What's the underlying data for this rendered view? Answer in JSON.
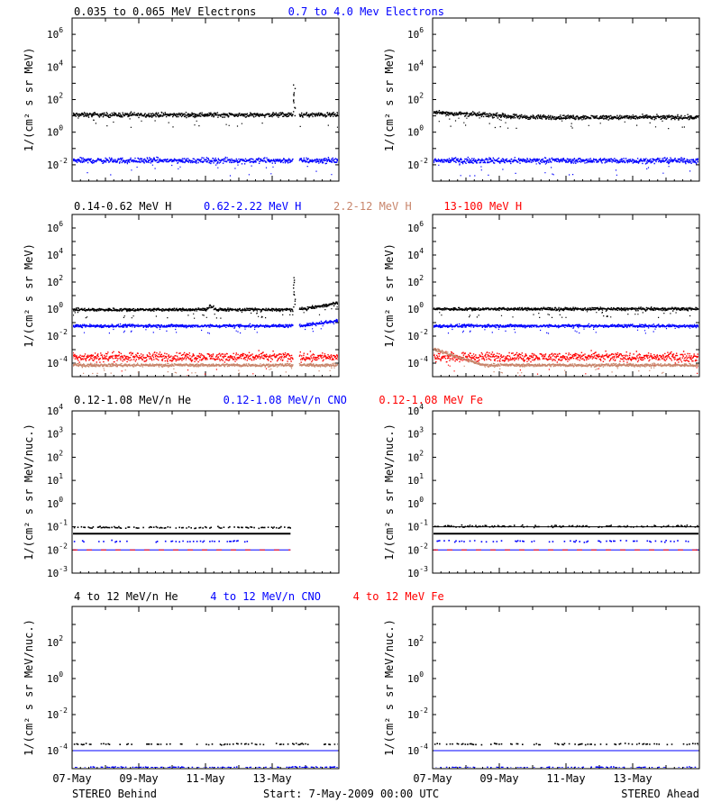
{
  "colors": {
    "black": "#000000",
    "blue": "#0000ff",
    "tan": "#c8856b",
    "red": "#ff0000"
  },
  "rows": [
    {
      "id": "electrons",
      "ylabel": "1/(cm² s sr MeV)",
      "titles": [
        {
          "text": "0.035 to 0.065 MeV Electrons",
          "color": "#000000"
        },
        {
          "text": "0.7 to 4.0 Mev Electrons",
          "color": "#0000ff"
        }
      ],
      "y_log_range": [
        -3,
        7
      ],
      "y_ticks": [
        {
          "base": "10",
          "exp": "-2",
          "value": -2
        },
        {
          "base": "10",
          "exp": "0",
          "value": 0
        },
        {
          "base": "10",
          "exp": "2",
          "value": 2
        },
        {
          "base": "10",
          "exp": "4",
          "value": 4
        },
        {
          "base": "10",
          "exp": "6",
          "value": 6
        }
      ],
      "panels": {
        "behind": {
          "gaps": [
            [
              6.6,
              6.8
            ]
          ],
          "series": [
            {
              "color": "#000000",
              "level": 1.1,
              "noise": 0.1
            },
            {
              "color": "#0000ff",
              "level": -1.7,
              "noise": 0.12
            }
          ],
          "spikes": [
            {
              "x": 6.62,
              "from": 1.1,
              "to": 2.9,
              "color": "#000000"
            }
          ]
        },
        "ahead": {
          "gaps": [],
          "series": [
            {
              "color": "#000000",
              "level": 0.95,
              "noise": 0.1,
              "start": 1.25
            },
            {
              "color": "#0000ff",
              "level": -1.7,
              "noise": 0.12
            }
          ],
          "spikes": []
        }
      }
    },
    {
      "id": "protons",
      "ylabel": "1/(cm² s sr MeV)",
      "titles": [
        {
          "text": "0.14-0.62 MeV H",
          "color": "#000000"
        },
        {
          "text": "0.62-2.22 MeV H",
          "color": "#0000ff"
        },
        {
          "text": "2.2-12 MeV H",
          "color": "#c8856b"
        },
        {
          "text": "13-100 MeV H",
          "color": "#ff0000"
        }
      ],
      "y_log_range": [
        -5,
        7
      ],
      "y_ticks": [
        {
          "base": "10",
          "exp": "-4",
          "value": -4
        },
        {
          "base": "10",
          "exp": "-2",
          "value": -2
        },
        {
          "base": "10",
          "exp": "0",
          "value": 0
        },
        {
          "base": "10",
          "exp": "2",
          "value": 2
        },
        {
          "base": "10",
          "exp": "4",
          "value": 4
        },
        {
          "base": "10",
          "exp": "6",
          "value": 6
        }
      ],
      "panels": {
        "behind": {
          "gaps": [
            [
              6.6,
              6.8
            ]
          ],
          "series": [
            {
              "color": "#000000",
              "level": 0.0,
              "noise": 0.08,
              "end_rise": 0.5
            },
            {
              "color": "#0000ff",
              "level": -1.2,
              "noise": 0.08,
              "end_rise": 0.4
            },
            {
              "color": "#ff0000",
              "level": -3.5,
              "noise": 0.25
            },
            {
              "color": "#c8856b",
              "level": -4.1,
              "noise": 0.08
            }
          ],
          "spikes": [
            {
              "x": 6.62,
              "from": 0.2,
              "to": 2.4,
              "color": "#000000"
            }
          ]
        },
        "ahead": {
          "gaps": [],
          "series": [
            {
              "color": "#000000",
              "level": 0.05,
              "noise": 0.08
            },
            {
              "color": "#0000ff",
              "level": -1.2,
              "noise": 0.08
            },
            {
              "color": "#ff0000",
              "level": -3.5,
              "noise": 0.25
            },
            {
              "color": "#c8856b",
              "level": -4.1,
              "noise": 0.08,
              "start": -2.9,
              "decay_to": 1.5
            }
          ],
          "spikes": []
        }
      }
    },
    {
      "id": "heavy-low",
      "ylabel": "1/(cm² s sr MeV/nuc.)",
      "titles": [
        {
          "text": "0.12-1.08 MeV/n He",
          "color": "#000000"
        },
        {
          "text": "0.12-1.08 MeV/n CNO",
          "color": "#0000ff"
        },
        {
          "text": "0.12-1.08 MeV Fe",
          "color": "#ff0000"
        }
      ],
      "y_log_range": [
        -3,
        4
      ],
      "y_ticks": [
        {
          "base": "10",
          "exp": "-3",
          "value": -3
        },
        {
          "base": "10",
          "exp": "-2",
          "value": -2
        },
        {
          "base": "10",
          "exp": "-1",
          "value": -1
        },
        {
          "base": "10",
          "exp": "0",
          "value": 0
        },
        {
          "base": "10",
          "exp": "1",
          "value": 1
        },
        {
          "base": "10",
          "exp": "2",
          "value": 2
        },
        {
          "base": "10",
          "exp": "3",
          "value": 3
        },
        {
          "base": "10",
          "exp": "4",
          "value": 4
        }
      ],
      "panels": {
        "behind": {
          "data_end": 6.55,
          "hlines": [
            {
              "color": "#000000",
              "level": -1.3,
              "width": 2
            },
            {
              "color": "#0000ff",
              "level": -2.0,
              "width": 1
            },
            {
              "color": "#ff0000",
              "level": -2.0,
              "width": 1,
              "dash": true
            }
          ],
          "dots": [
            {
              "color": "#000000",
              "level": -1.0,
              "density": 0.55
            },
            {
              "color": "#0000ff",
              "level": -1.6,
              "density": 0.25
            }
          ]
        },
        "ahead": {
          "data_end": 8.0,
          "hlines": [
            {
              "color": "#000000",
              "level": -1.3,
              "width": 2
            },
            {
              "color": "#000000",
              "level": -1.0,
              "width": 1
            },
            {
              "color": "#0000ff",
              "level": -2.0,
              "width": 1
            },
            {
              "color": "#ff0000",
              "level": -2.0,
              "width": 1,
              "dash": true
            }
          ],
          "dots": [
            {
              "color": "#000000",
              "level": -0.95,
              "density": 0.5
            },
            {
              "color": "#0000ff",
              "level": -1.6,
              "density": 0.3
            }
          ]
        }
      }
    },
    {
      "id": "heavy-high",
      "ylabel": "1/(cm² s sr MeV/nuc.)",
      "titles": [
        {
          "text": "4 to 12 MeV/n He",
          "color": "#000000"
        },
        {
          "text": "4 to 12 MeV/n CNO",
          "color": "#0000ff"
        },
        {
          "text": "4 to 12 MeV Fe",
          "color": "#ff0000"
        }
      ],
      "y_log_range": [
        -5,
        4
      ],
      "y_ticks": [
        {
          "base": "10",
          "exp": "-4",
          "value": -4
        },
        {
          "base": "10",
          "exp": "-2",
          "value": -2
        },
        {
          "base": "10",
          "exp": "0",
          "value": 0
        },
        {
          "base": "10",
          "exp": "2",
          "value": 2
        }
      ],
      "panels": {
        "behind": {
          "data_end": 8.0,
          "hlines": [
            {
              "color": "#0000ff",
              "level": -4.0,
              "width": 1
            }
          ],
          "dots": [
            {
              "color": "#000000",
              "level": -3.6,
              "density": 0.35
            },
            {
              "color": "#0000ff",
              "level": -4.9,
              "density": 0.45
            }
          ]
        },
        "ahead": {
          "data_end": 8.0,
          "hlines": [
            {
              "color": "#0000ff",
              "level": -4.0,
              "width": 1
            }
          ],
          "dots": [
            {
              "color": "#000000",
              "level": -3.6,
              "density": 0.3
            },
            {
              "color": "#0000ff",
              "level": -4.9,
              "density": 0.4
            }
          ]
        }
      }
    }
  ],
  "x_axis": {
    "range_days": [
      0,
      8
    ],
    "tick_labels": [
      "07-May",
      "09-May",
      "11-May",
      "13-May"
    ],
    "tick_days": [
      0,
      2,
      4,
      6
    ]
  },
  "footer": {
    "left": "STEREO Behind",
    "center": "Start:  7-May-2009 00:00 UTC",
    "right": "STEREO Ahead"
  },
  "chart_data": {
    "type": "scatter",
    "x_unit": "days since 07-May-2009",
    "y_scale": "log",
    "series_note": "Multi-panel STEREO particle flux overview; Behind (left) and Ahead (right)"
  }
}
